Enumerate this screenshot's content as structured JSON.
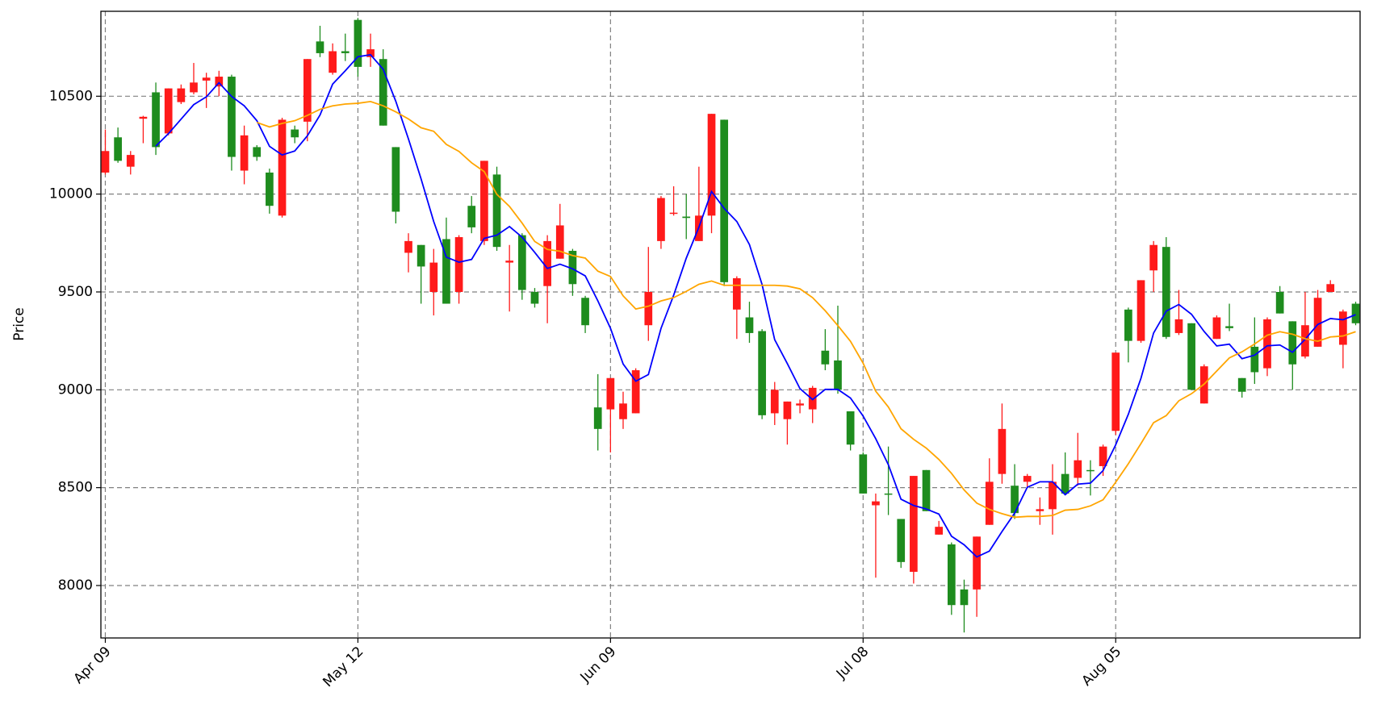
{
  "chart_data": {
    "type": "candlestick",
    "ylabel": "Price",
    "categories": [
      "Apr 09",
      null,
      null,
      null,
      null,
      null,
      null,
      null,
      null,
      null,
      null,
      null,
      null,
      null,
      null,
      null,
      null,
      null,
      null,
      null,
      "May 12",
      null,
      null,
      null,
      null,
      null,
      null,
      null,
      null,
      null,
      null,
      null,
      null,
      null,
      null,
      null,
      null,
      null,
      null,
      null,
      "Jun 09",
      null,
      null,
      null,
      null,
      null,
      null,
      null,
      null,
      null,
      null,
      null,
      null,
      null,
      null,
      null,
      null,
      null,
      null,
      null,
      "Jul 08",
      null,
      null,
      null,
      null,
      null,
      null,
      null,
      null,
      null,
      null,
      null,
      null,
      null,
      null,
      null,
      null,
      null,
      null,
      null,
      "Aug 05",
      null,
      null,
      null,
      null,
      null,
      null,
      null,
      null,
      null,
      null,
      null,
      null,
      null,
      null,
      null,
      null,
      null,
      null,
      null
    ],
    "open": [
      10110,
      10290,
      10140,
      10385,
      10520,
      10310,
      10470,
      10520,
      10580,
      10550,
      10600,
      10120,
      10240,
      10110,
      9890,
      10330,
      10370,
      10780,
      10620,
      10730,
      10890,
      10700,
      10690,
      10240,
      9700,
      9740,
      9500,
      9770,
      9500,
      9940,
      9760,
      10100,
      9650,
      9790,
      9500,
      9530,
      9670,
      9710,
      9470,
      8910,
      8900,
      8850,
      8880,
      9330,
      9760,
      9900,
      9885,
      9760,
      9890,
      10380,
      9410,
      9370,
      9300,
      8880,
      8850,
      8920,
      8900,
      9200,
      9150,
      8890,
      8670,
      8410,
      8470,
      8340,
      8070,
      8590,
      8260,
      8210,
      7980,
      7980,
      8310,
      8570,
      8510,
      8530,
      8380,
      8390,
      8570,
      8550,
      8590,
      8610,
      8790,
      9410,
      9250,
      9610,
      9730,
      9290,
      9340,
      8930,
      9260,
      9325,
      9060,
      9220,
      9110,
      9500,
      9350,
      9170,
      9220,
      9500,
      9230,
      9440
    ],
    "high": [
      10330,
      10340,
      10220,
      10400,
      10570,
      10540,
      10560,
      10670,
      10620,
      10630,
      10610,
      10350,
      10250,
      10130,
      10390,
      10350,
      10690,
      10860,
      10770,
      10820,
      10900,
      10820,
      10740,
      10240,
      9800,
      9740,
      9720,
      9880,
      9790,
      9990,
      10170,
      10140,
      9740,
      9800,
      9520,
      9790,
      9950,
      9720,
      9480,
      9080,
      9060,
      8990,
      9110,
      9730,
      9990,
      10040,
      10000,
      10140,
      10410,
      10380,
      9580,
      9450,
      9310,
      9040,
      8940,
      8950,
      9020,
      9310,
      9430,
      8890,
      8680,
      8470,
      8710,
      8340,
      8560,
      8590,
      8330,
      8220,
      8030,
      8250,
      8650,
      8930,
      8620,
      8570,
      8450,
      8620,
      8680,
      8780,
      8640,
      8720,
      9190,
      9420,
      9560,
      9760,
      9780,
      9510,
      9340,
      9130,
      9380,
      9440,
      9060,
      9370,
      9370,
      9530,
      9350,
      9500,
      9510,
      9560,
      9410,
      9450
    ],
    "low": [
      10100,
      10160,
      10100,
      10260,
      10200,
      10300,
      10460,
      10510,
      10440,
      10500,
      10120,
      10050,
      10170,
      9900,
      9880,
      10260,
      10270,
      10700,
      10610,
      10680,
      10600,
      10650,
      10350,
      9850,
      9600,
      9440,
      9380,
      9440,
      9440,
      9800,
      9740,
      9710,
      9400,
      9460,
      9420,
      9340,
      9670,
      9480,
      9290,
      8690,
      8680,
      8800,
      8880,
      9250,
      9720,
      9890,
      9770,
      9760,
      9800,
      9530,
      9260,
      9240,
      8850,
      8820,
      8720,
      8880,
      8830,
      9100,
      8980,
      8690,
      8470,
      8040,
      8360,
      8090,
      8010,
      8380,
      8260,
      7850,
      7760,
      7840,
      8310,
      8520,
      8340,
      8500,
      8310,
      8260,
      8470,
      8510,
      8460,
      8560,
      8770,
      9140,
      9240,
      9500,
      9260,
      9280,
      9000,
      8930,
      9260,
      9300,
      8960,
      9030,
      9070,
      9390,
      9000,
      9160,
      9220,
      9500,
      9110,
      9330
    ],
    "close": [
      10220,
      10170,
      10200,
      10395,
      10240,
      10540,
      10540,
      10570,
      10595,
      10600,
      10190,
      10300,
      10190,
      9940,
      10380,
      10290,
      10690,
      10720,
      10730,
      10720,
      10650,
      10740,
      10350,
      9910,
      9760,
      9630,
      9650,
      9440,
      9780,
      9830,
      10170,
      9730,
      9660,
      9510,
      9440,
      9760,
      9840,
      9540,
      9330,
      8800,
      9060,
      8930,
      9100,
      9500,
      9980,
      9905,
      9878,
      9890,
      10410,
      9550,
      9570,
      9290,
      8870,
      9000,
      8940,
      8930,
      9010,
      9130,
      9000,
      8720,
      8470,
      8430,
      8465,
      8120,
      8560,
      8380,
      8300,
      7900,
      7900,
      8250,
      8530,
      8800,
      8370,
      8560,
      8390,
      8530,
      8470,
      8640,
      8585,
      8710,
      9190,
      9250,
      9560,
      9740,
      9270,
      9360,
      9000,
      9120,
      9370,
      9315,
      8990,
      9090,
      9360,
      9390,
      9130,
      9330,
      9470,
      9540,
      9400,
      9340
    ],
    "up_color": "#ff1a1a",
    "down_color": "#1e8c1e",
    "lines": [
      {
        "color": "#0000ff",
        "values": [
          null,
          null,
          null,
          null,
          10245,
          10309,
          10383,
          10457,
          10497,
          10569,
          10499,
          10451,
          10375,
          10244,
          10200,
          10220,
          10298,
          10404,
          10562,
          10630,
          10702,
          10712,
          10638,
          10474,
          10282,
          10078,
          9860,
          9678,
          9652,
          9666,
          9774,
          9790,
          9834,
          9780,
          9702,
          9620,
          9642,
          9618,
          9582,
          9454,
          9314,
          9132,
          9044,
          9078,
          9314,
          9483,
          9673,
          9831,
          10013,
          9927,
          9860,
          9742,
          9538,
          9256,
          9134,
          9006,
          8950,
          9002,
          9002,
          8958,
          8866,
          8750,
          8617,
          8441,
          8409,
          8391,
          8365,
          8252,
          8208,
          8146,
          8176,
          8276,
          8370,
          8502,
          8530,
          8530,
          8464,
          8518,
          8523,
          8587,
          8719,
          8875,
          9059,
          9290,
          9402,
          9436,
          9386,
          9298,
          9224,
          9233,
          9159,
          9177,
          9225,
          9229,
          9192,
          9258,
          9334,
          9364,
          9358,
          9384
        ]
      },
      {
        "color": "#ffa500",
        "values": [
          null,
          null,
          null,
          null,
          null,
          null,
          null,
          null,
          null,
          null,
          null,
          null,
          10366,
          10343,
          10361,
          10375,
          10402,
          10433,
          10451,
          10460,
          10464,
          10473,
          10451,
          10420,
          10384,
          10339,
          10321,
          10254,
          10218,
          10160,
          10115,
          9999,
          9937,
          9852,
          9758,
          9717,
          9708,
          9686,
          9673,
          9606,
          9579,
          9480,
          9413,
          9427,
          9454,
          9471,
          9503,
          9539,
          9556,
          9534,
          9534,
          9534,
          9534,
          9534,
          9530,
          9516,
          9471,
          9404,
          9328,
          9248,
          9136,
          8993,
          8912,
          8801,
          8747,
          8702,
          8644,
          8573,
          8488,
          8421,
          8389,
          8367,
          8349,
          8353,
          8353,
          8358,
          8385,
          8389,
          8407,
          8438,
          8528,
          8622,
          8725,
          8832,
          8868,
          8944,
          8980,
          9029,
          9096,
          9163,
          9194,
          9234,
          9279,
          9297,
          9284,
          9261,
          9248,
          9270,
          9275,
          9297
        ]
      }
    ],
    "ylim": [
      7732,
      10934
    ],
    "yticks": [
      8000,
      8500,
      9000,
      9500,
      10000,
      10500
    ],
    "grid": true
  }
}
